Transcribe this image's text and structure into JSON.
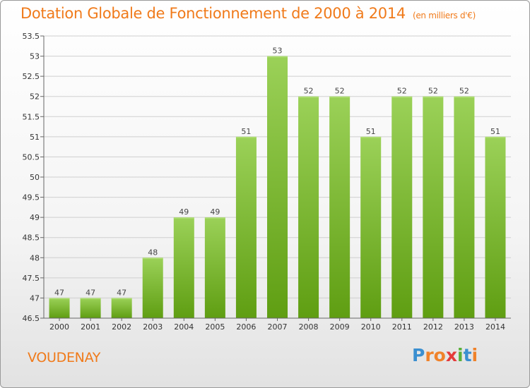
{
  "header": {
    "title": "Dotation Globale de Fonctionnement de 2000 à 2014",
    "unit": "(en milliers d'€)"
  },
  "footer": {
    "commune": "VOUDENAY",
    "logo": "Proxiti"
  },
  "colors": {
    "accent": "#f07a1a",
    "bar_top": "#9bd158",
    "bar_bottom": "#5f9e12",
    "axis": "#666666",
    "grid": "#cfcfcf"
  },
  "chart_data": {
    "type": "bar",
    "categories": [
      "2000",
      "2001",
      "2002",
      "2003",
      "2004",
      "2005",
      "2006",
      "2007",
      "2008",
      "2009",
      "2010",
      "2011",
      "2012",
      "2013",
      "2014"
    ],
    "values": [
      47,
      47,
      47,
      48,
      49,
      49,
      51,
      53,
      52,
      52,
      51,
      52,
      52,
      52,
      51
    ],
    "title": "Dotation Globale de Fonctionnement de 2000 à 2014",
    "xlabel": "",
    "ylabel": "",
    "ylim": [
      46.5,
      53.5
    ],
    "yticks": [
      "46.5",
      "47",
      "47.5",
      "48",
      "48.5",
      "49",
      "49.5",
      "50",
      "50.5",
      "51",
      "51.5",
      "52",
      "52.5",
      "53",
      "53.5"
    ],
    "grid": true,
    "legend": "none"
  }
}
